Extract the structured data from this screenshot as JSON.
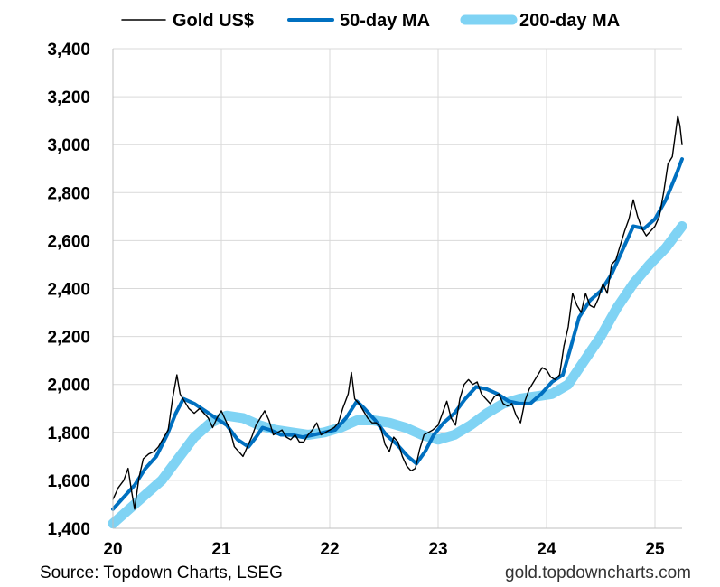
{
  "chart_data": {
    "type": "line",
    "legend": {
      "position": "top",
      "entries": [
        "Gold US$",
        "50-day MA",
        "200-day MA"
      ]
    },
    "x_axis": {
      "ticks": [
        "20",
        "21",
        "22",
        "23",
        "24",
        "25"
      ],
      "range": [
        2020.0,
        2025.25
      ]
    },
    "y_axis": {
      "ticks": [
        "1,400",
        "1,600",
        "1,800",
        "2,000",
        "2,200",
        "2,400",
        "2,600",
        "2,800",
        "3,000",
        "3,200",
        "3,400"
      ],
      "range": [
        1400,
        3400
      ]
    },
    "grid": "vertical and horizontal",
    "series": [
      {
        "name": "Gold US$",
        "color": "#000000",
        "points": [
          [
            2020.0,
            1520
          ],
          [
            2020.05,
            1570
          ],
          [
            2020.1,
            1600
          ],
          [
            2020.14,
            1650
          ],
          [
            2020.17,
            1560
          ],
          [
            2020.2,
            1480
          ],
          [
            2020.24,
            1610
          ],
          [
            2020.28,
            1690
          ],
          [
            2020.33,
            1710
          ],
          [
            2020.38,
            1720
          ],
          [
            2020.42,
            1740
          ],
          [
            2020.47,
            1780
          ],
          [
            2020.51,
            1810
          ],
          [
            2020.55,
            1940
          ],
          [
            2020.59,
            2040
          ],
          [
            2020.62,
            1960
          ],
          [
            2020.66,
            1930
          ],
          [
            2020.7,
            1900
          ],
          [
            2020.75,
            1880
          ],
          [
            2020.8,
            1900
          ],
          [
            2020.84,
            1880
          ],
          [
            2020.88,
            1860
          ],
          [
            2020.92,
            1820
          ],
          [
            2020.96,
            1860
          ],
          [
            2021.0,
            1890
          ],
          [
            2021.04,
            1850
          ],
          [
            2021.08,
            1810
          ],
          [
            2021.12,
            1740
          ],
          [
            2021.16,
            1720
          ],
          [
            2021.2,
            1700
          ],
          [
            2021.24,
            1740
          ],
          [
            2021.28,
            1780
          ],
          [
            2021.32,
            1830
          ],
          [
            2021.36,
            1860
          ],
          [
            2021.4,
            1890
          ],
          [
            2021.44,
            1850
          ],
          [
            2021.48,
            1790
          ],
          [
            2021.52,
            1800
          ],
          [
            2021.56,
            1810
          ],
          [
            2021.6,
            1780
          ],
          [
            2021.64,
            1770
          ],
          [
            2021.68,
            1790
          ],
          [
            2021.72,
            1760
          ],
          [
            2021.76,
            1760
          ],
          [
            2021.8,
            1790
          ],
          [
            2021.84,
            1810
          ],
          [
            2021.88,
            1840
          ],
          [
            2021.92,
            1790
          ],
          [
            2021.96,
            1800
          ],
          [
            2022.0,
            1810
          ],
          [
            2022.04,
            1820
          ],
          [
            2022.08,
            1840
          ],
          [
            2022.12,
            1900
          ],
          [
            2022.17,
            1960
          ],
          [
            2022.2,
            2050
          ],
          [
            2022.23,
            1940
          ],
          [
            2022.27,
            1920
          ],
          [
            2022.31,
            1890
          ],
          [
            2022.35,
            1860
          ],
          [
            2022.39,
            1840
          ],
          [
            2022.43,
            1840
          ],
          [
            2022.47,
            1820
          ],
          [
            2022.51,
            1750
          ],
          [
            2022.55,
            1720
          ],
          [
            2022.59,
            1780
          ],
          [
            2022.63,
            1760
          ],
          [
            2022.67,
            1700
          ],
          [
            2022.71,
            1660
          ],
          [
            2022.75,
            1640
          ],
          [
            2022.79,
            1650
          ],
          [
            2022.83,
            1730
          ],
          [
            2022.87,
            1790
          ],
          [
            2022.91,
            1800
          ],
          [
            2022.95,
            1810
          ],
          [
            2023.0,
            1830
          ],
          [
            2023.04,
            1880
          ],
          [
            2023.08,
            1930
          ],
          [
            2023.12,
            1860
          ],
          [
            2023.16,
            1830
          ],
          [
            2023.2,
            1940
          ],
          [
            2023.24,
            2000
          ],
          [
            2023.28,
            2020
          ],
          [
            2023.32,
            2000
          ],
          [
            2023.36,
            2010
          ],
          [
            2023.4,
            1960
          ],
          [
            2023.44,
            1940
          ],
          [
            2023.48,
            1920
          ],
          [
            2023.52,
            1950
          ],
          [
            2023.56,
            1960
          ],
          [
            2023.6,
            1920
          ],
          [
            2023.64,
            1910
          ],
          [
            2023.68,
            1920
          ],
          [
            2023.72,
            1870
          ],
          [
            2023.76,
            1840
          ],
          [
            2023.8,
            1930
          ],
          [
            2023.84,
            1980
          ],
          [
            2023.88,
            2010
          ],
          [
            2023.92,
            2040
          ],
          [
            2023.96,
            2070
          ],
          [
            2024.0,
            2060
          ],
          [
            2024.04,
            2030
          ],
          [
            2024.08,
            2020
          ],
          [
            2024.12,
            2040
          ],
          [
            2024.16,
            2160
          ],
          [
            2024.2,
            2240
          ],
          [
            2024.24,
            2380
          ],
          [
            2024.28,
            2330
          ],
          [
            2024.32,
            2300
          ],
          [
            2024.36,
            2380
          ],
          [
            2024.4,
            2330
          ],
          [
            2024.44,
            2320
          ],
          [
            2024.48,
            2360
          ],
          [
            2024.52,
            2420
          ],
          [
            2024.56,
            2380
          ],
          [
            2024.6,
            2500
          ],
          [
            2024.64,
            2520
          ],
          [
            2024.68,
            2580
          ],
          [
            2024.72,
            2640
          ],
          [
            2024.76,
            2690
          ],
          [
            2024.8,
            2770
          ],
          [
            2024.84,
            2700
          ],
          [
            2024.88,
            2650
          ],
          [
            2024.92,
            2620
          ],
          [
            2024.96,
            2640
          ],
          [
            2025.0,
            2660
          ],
          [
            2025.04,
            2700
          ],
          [
            2025.08,
            2800
          ],
          [
            2025.12,
            2920
          ],
          [
            2025.16,
            2950
          ],
          [
            2025.19,
            3050
          ],
          [
            2025.21,
            3120
          ],
          [
            2025.23,
            3080
          ],
          [
            2025.25,
            3000
          ]
        ]
      },
      {
        "name": "50-day MA",
        "color": "#0070c0",
        "points": [
          [
            2020.0,
            1480
          ],
          [
            2020.1,
            1530
          ],
          [
            2020.2,
            1580
          ],
          [
            2020.3,
            1650
          ],
          [
            2020.4,
            1700
          ],
          [
            2020.5,
            1790
          ],
          [
            2020.58,
            1880
          ],
          [
            2020.65,
            1940
          ],
          [
            2020.75,
            1920
          ],
          [
            2020.85,
            1890
          ],
          [
            2020.95,
            1860
          ],
          [
            2021.05,
            1830
          ],
          [
            2021.15,
            1770
          ],
          [
            2021.25,
            1740
          ],
          [
            2021.32,
            1780
          ],
          [
            2021.38,
            1820
          ],
          [
            2021.45,
            1810
          ],
          [
            2021.55,
            1790
          ],
          [
            2021.65,
            1790
          ],
          [
            2021.75,
            1780
          ],
          [
            2021.85,
            1790
          ],
          [
            2021.95,
            1800
          ],
          [
            2022.05,
            1810
          ],
          [
            2022.15,
            1860
          ],
          [
            2022.25,
            1930
          ],
          [
            2022.32,
            1900
          ],
          [
            2022.42,
            1850
          ],
          [
            2022.52,
            1790
          ],
          [
            2022.62,
            1750
          ],
          [
            2022.72,
            1700
          ],
          [
            2022.8,
            1670
          ],
          [
            2022.88,
            1720
          ],
          [
            2022.96,
            1790
          ],
          [
            2023.05,
            1840
          ],
          [
            2023.15,
            1880
          ],
          [
            2023.25,
            1940
          ],
          [
            2023.35,
            1990
          ],
          [
            2023.45,
            1980
          ],
          [
            2023.55,
            1960
          ],
          [
            2023.65,
            1930
          ],
          [
            2023.75,
            1920
          ],
          [
            2023.85,
            1920
          ],
          [
            2023.95,
            1960
          ],
          [
            2024.05,
            2010
          ],
          [
            2024.15,
            2040
          ],
          [
            2024.22,
            2150
          ],
          [
            2024.3,
            2280
          ],
          [
            2024.4,
            2350
          ],
          [
            2024.5,
            2390
          ],
          [
            2024.6,
            2460
          ],
          [
            2024.7,
            2560
          ],
          [
            2024.8,
            2660
          ],
          [
            2024.9,
            2650
          ],
          [
            2025.0,
            2690
          ],
          [
            2025.1,
            2770
          ],
          [
            2025.2,
            2880
          ],
          [
            2025.25,
            2940
          ]
        ]
      },
      {
        "name": "200-day MA",
        "color": "#7fd3f4",
        "points": [
          [
            2020.0,
            1420
          ],
          [
            2020.15,
            1480
          ],
          [
            2020.3,
            1540
          ],
          [
            2020.45,
            1600
          ],
          [
            2020.6,
            1690
          ],
          [
            2020.75,
            1780
          ],
          [
            2020.9,
            1840
          ],
          [
            2021.05,
            1870
          ],
          [
            2021.2,
            1860
          ],
          [
            2021.35,
            1830
          ],
          [
            2021.5,
            1810
          ],
          [
            2021.65,
            1800
          ],
          [
            2021.8,
            1790
          ],
          [
            2021.95,
            1800
          ],
          [
            2022.1,
            1820
          ],
          [
            2022.25,
            1850
          ],
          [
            2022.4,
            1850
          ],
          [
            2022.55,
            1840
          ],
          [
            2022.7,
            1820
          ],
          [
            2022.85,
            1790
          ],
          [
            2023.0,
            1770
          ],
          [
            2023.15,
            1790
          ],
          [
            2023.3,
            1830
          ],
          [
            2023.45,
            1880
          ],
          [
            2023.6,
            1920
          ],
          [
            2023.75,
            1940
          ],
          [
            2023.9,
            1950
          ],
          [
            2024.05,
            1960
          ],
          [
            2024.2,
            2000
          ],
          [
            2024.35,
            2100
          ],
          [
            2024.5,
            2200
          ],
          [
            2024.65,
            2320
          ],
          [
            2024.8,
            2420
          ],
          [
            2024.95,
            2500
          ],
          [
            2025.1,
            2570
          ],
          [
            2025.25,
            2660
          ]
        ]
      }
    ]
  },
  "footer": {
    "source": "Source: Topdown Charts, LSEG",
    "website": "gold.topdowncharts.com"
  }
}
